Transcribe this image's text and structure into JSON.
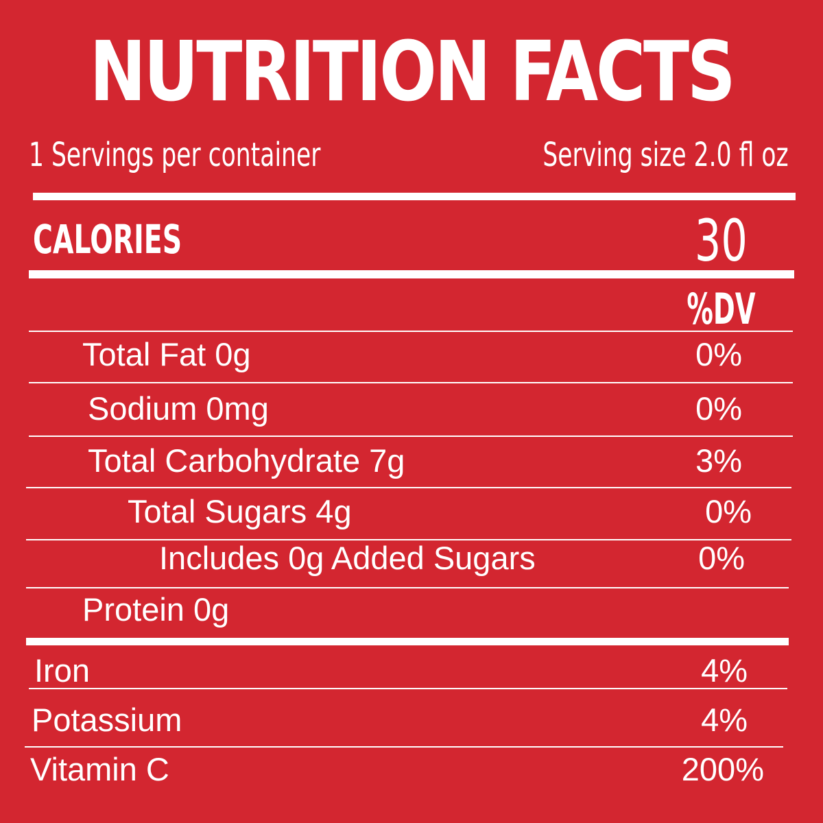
{
  "title": "NUTRITION FACTS",
  "servings": "1 Servings per container",
  "serving_size": "Serving size 2.0 fl oz",
  "calories": {
    "label": "CALORIES",
    "value": "30"
  },
  "dv_header": "%DV",
  "nutrients": [
    {
      "label": "Total Fat 0g",
      "dv": "0%"
    },
    {
      "label": "Sodium 0mg",
      "dv": "0%"
    },
    {
      "label": "Total Carbohydrate 7g",
      "dv": "3%"
    },
    {
      "label": "Total Sugars  4g",
      "dv": "0%"
    },
    {
      "label": "Includes 0g Added Sugars",
      "dv": "0%"
    },
    {
      "label": "Protein 0g",
      "dv": ""
    }
  ],
  "vitamins": [
    {
      "label": "Iron",
      "dv": "4%"
    },
    {
      "label": "Potassium",
      "dv": "4%"
    },
    {
      "label": "Vitamin C",
      "dv": "200%"
    }
  ],
  "colors": {
    "background": "#d32630",
    "text": "#ffffff"
  }
}
